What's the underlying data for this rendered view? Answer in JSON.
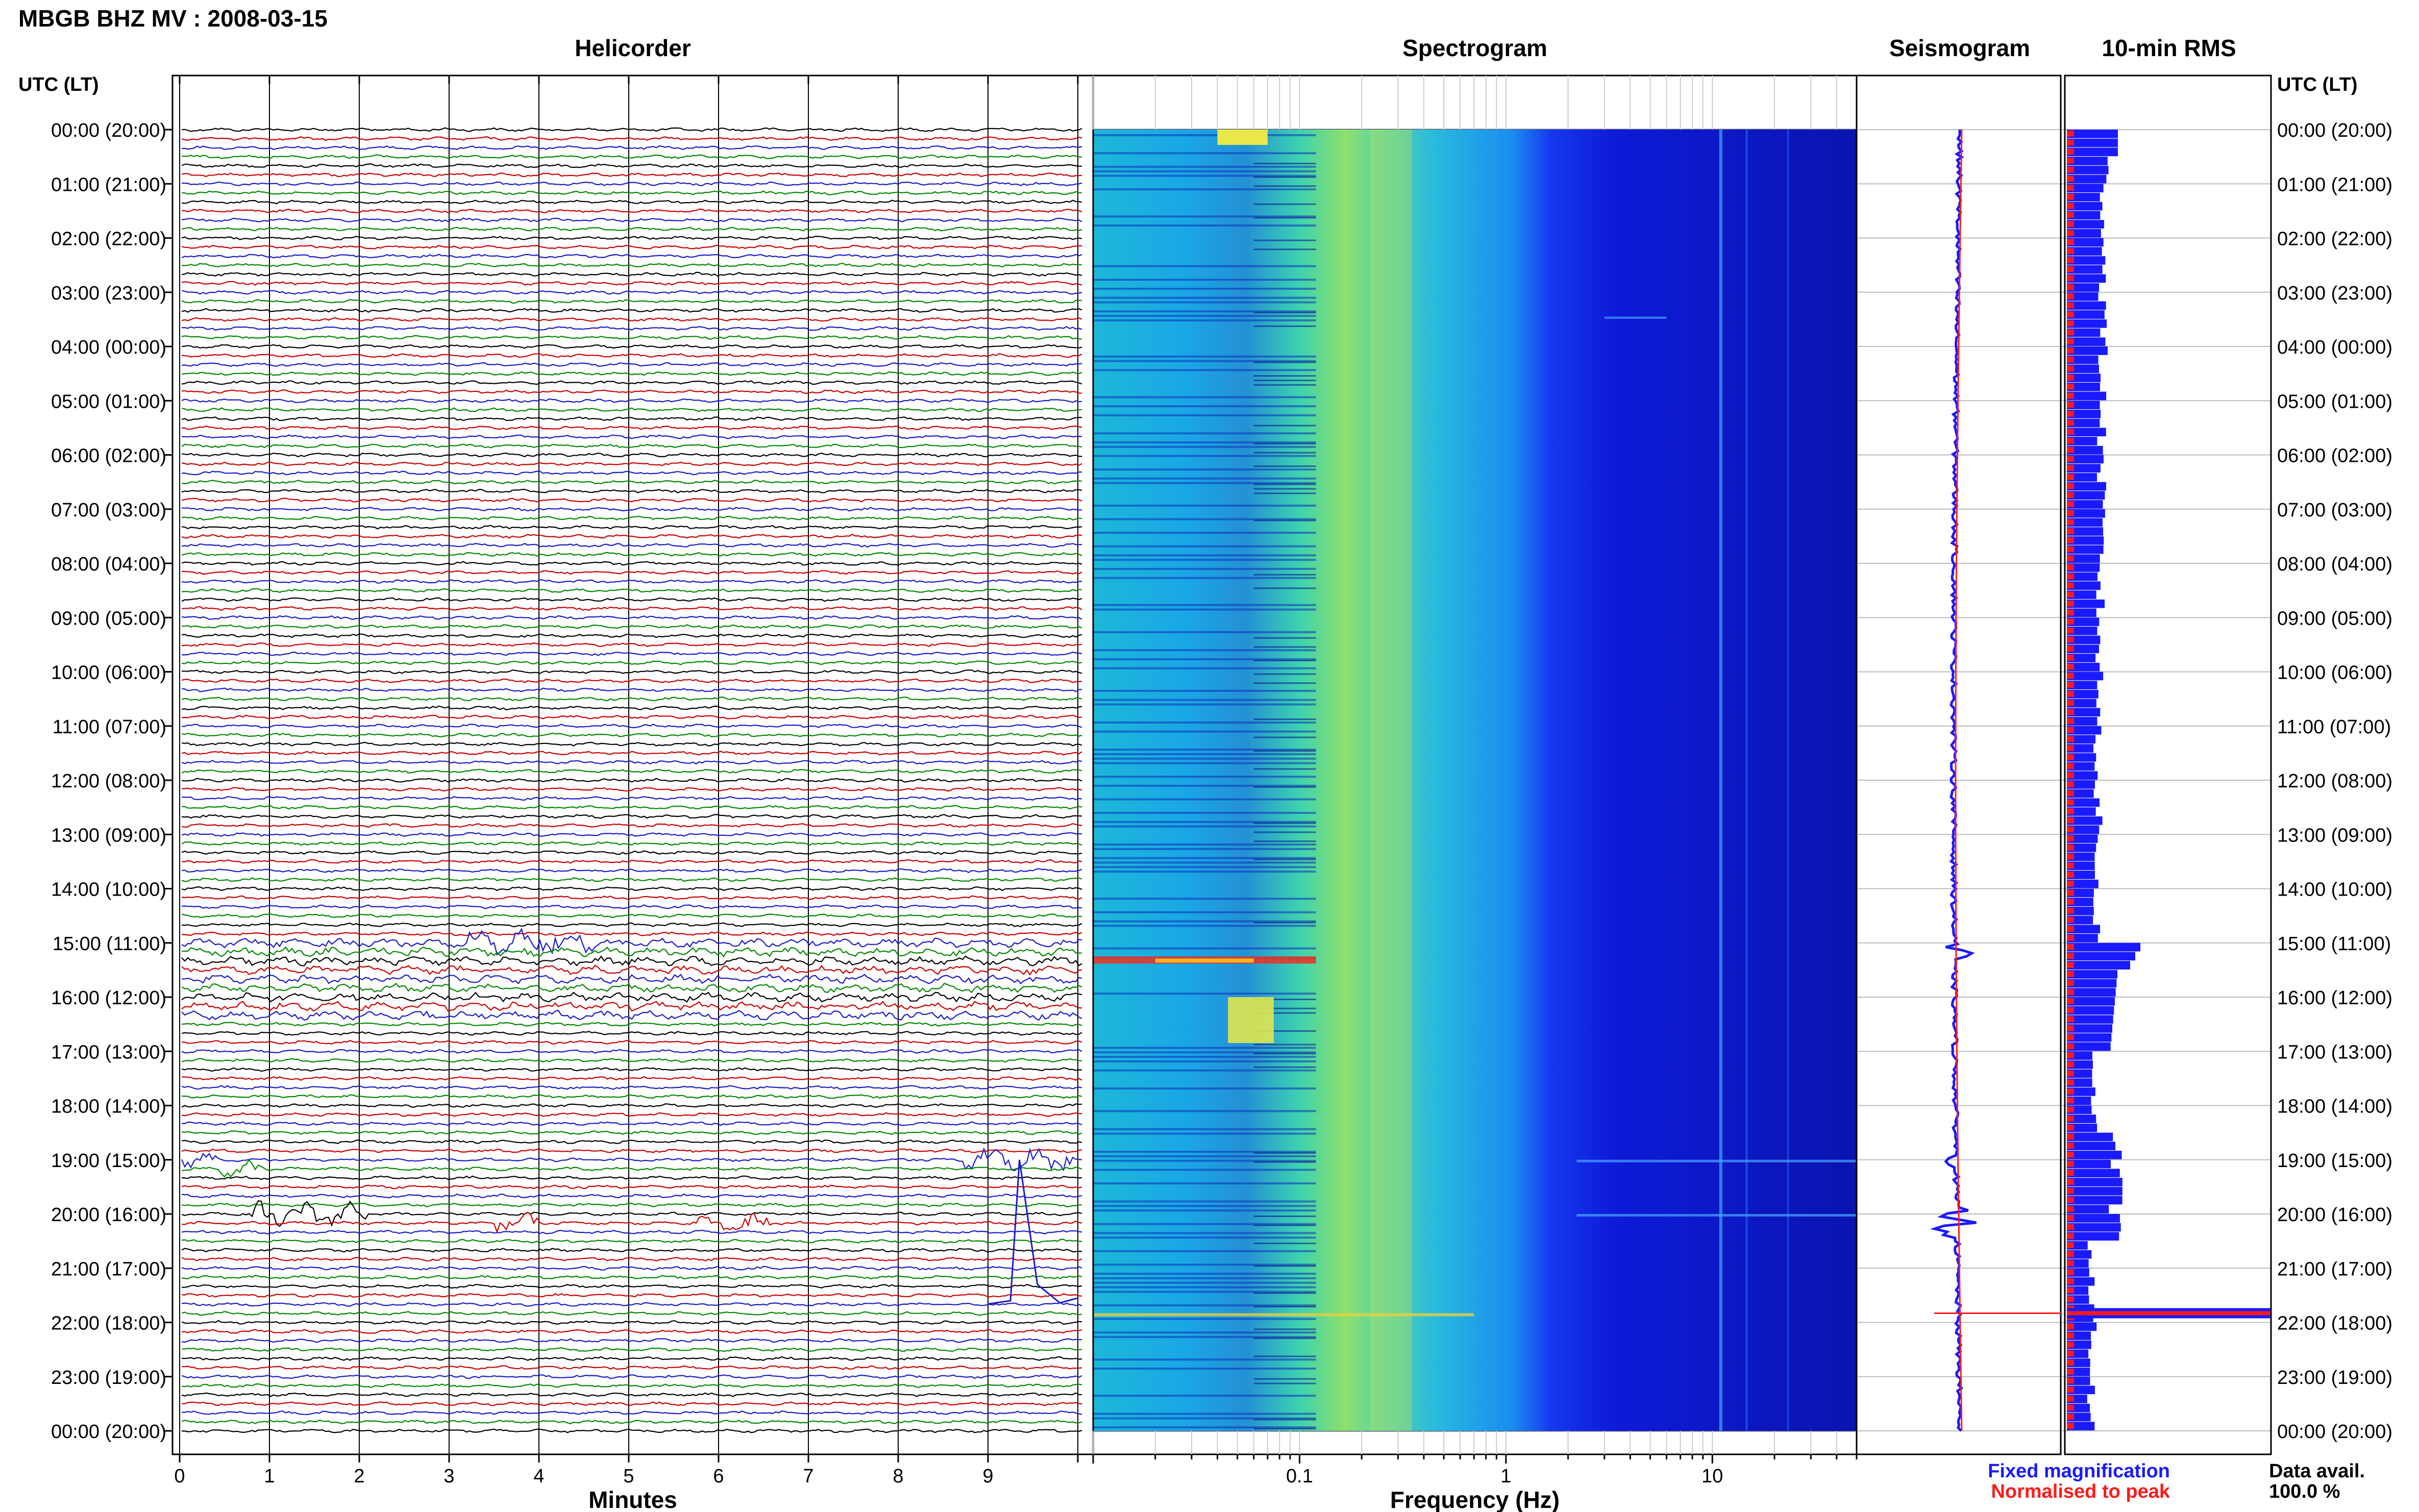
{
  "header": {
    "title": "MBGB BHZ MV : 2008-03-15",
    "time_axis_label": "UTC (LT)"
  },
  "panels": {
    "helicorder": "Helicorder",
    "spectrogram": "Spectrogram",
    "seismogram": "Seismogram",
    "rms": "10-min RMS"
  },
  "legend": {
    "fixed": "Fixed magnification",
    "normalised": "Normalised to peak",
    "fixed_color": "#1a1aff",
    "normalised_color": "#ff1a1a"
  },
  "availability": {
    "label": "Data avail.",
    "value": "100.0 %"
  },
  "chart_data": [
    {
      "type": "line",
      "title": "Helicorder",
      "xlabel": "Minutes",
      "x_ticks": [
        "0",
        "1",
        "2",
        "3",
        "4",
        "5",
        "6",
        "7",
        "8",
        "9"
      ],
      "xlim": [
        0,
        10
      ],
      "row_labels": [
        "00:00 (20:00)",
        "01:00 (21:00)",
        "02:00 (22:00)",
        "03:00 (23:00)",
        "04:00 (00:00)",
        "05:00 (01:00)",
        "06:00 (02:00)",
        "07:00 (03:00)",
        "08:00 (04:00)",
        "09:00 (05:00)",
        "10:00 (06:00)",
        "11:00 (07:00)",
        "12:00 (08:00)",
        "13:00 (09:00)",
        "14:00 (10:00)",
        "15:00 (11:00)",
        "16:00 (12:00)",
        "17:00 (13:00)",
        "18:00 (14:00)",
        "19:00 (15:00)",
        "20:00 (16:00)",
        "21:00 (17:00)",
        "22:00 (18:00)",
        "23:00 (19:00)",
        "00:00 (20:00)"
      ],
      "trace_colors": [
        "#000000",
        "#cc0000",
        "#1a1acc",
        "#008800"
      ],
      "traces_per_hour": 6,
      "events": [
        {
          "hour": 15.0,
          "minute_start": 3.2,
          "minute_end": 4.6,
          "amplitude": 0.6
        },
        {
          "hour": 19.0,
          "minute_start": 0.0,
          "minute_end": 0.4,
          "amplitude": 0.4
        },
        {
          "hour": 19.0,
          "minute_start": 8.7,
          "minute_end": 10.0,
          "amplitude": 0.6
        },
        {
          "hour": 19.17,
          "minute_start": 0.4,
          "minute_end": 1.0,
          "amplitude": 0.4
        },
        {
          "hour": 20.0,
          "minute_start": 0.8,
          "minute_end": 2.1,
          "amplitude": 0.7
        },
        {
          "hour": 20.17,
          "minute_start": 3.5,
          "minute_end": 4.0,
          "amplitude": 0.5
        },
        {
          "hour": 20.17,
          "minute_start": 5.7,
          "minute_end": 6.6,
          "amplitude": 0.5
        }
      ]
    },
    {
      "type": "heatmap",
      "title": "Spectrogram",
      "xlabel": "Frequency (Hz)",
      "x_scale": "log",
      "xlim": [
        0.01,
        50
      ],
      "x_ticks": [
        "0.1",
        "1",
        "10"
      ],
      "y_range_hours": [
        0,
        24
      ]
    },
    {
      "type": "line",
      "title": "Seismogram",
      "series": [
        "Fixed magnification",
        "Normalised to peak"
      ]
    },
    {
      "type": "bar",
      "title": "10-min RMS",
      "orientation": "horizontal",
      "bin_minutes": 10,
      "peak_hour": 21.83,
      "series": [
        "Fixed magnification",
        "Normalised to peak"
      ]
    }
  ]
}
